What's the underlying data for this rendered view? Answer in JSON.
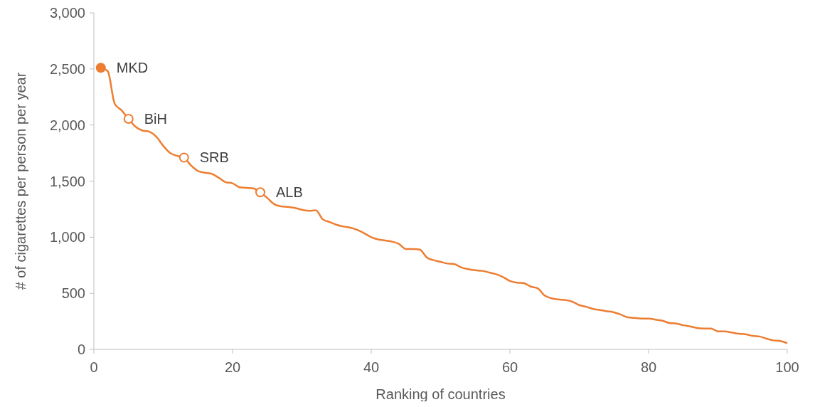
{
  "chart_data": {
    "type": "line",
    "xlabel": "Ranking of countries",
    "ylabel": "# of cigarettes per person per year",
    "x": [
      1,
      2,
      3,
      4,
      5,
      6,
      7,
      8,
      9,
      10,
      11,
      12,
      13,
      14,
      15,
      16,
      17,
      18,
      19,
      20,
      21,
      22,
      23,
      24,
      25,
      26,
      27,
      28,
      29,
      30,
      31,
      32,
      33,
      34,
      35,
      36,
      37,
      38,
      39,
      40,
      41,
      42,
      43,
      44,
      45,
      46,
      47,
      48,
      49,
      50,
      51,
      52,
      53,
      54,
      55,
      56,
      57,
      58,
      59,
      60,
      61,
      62,
      63,
      64,
      65,
      66,
      67,
      68,
      69,
      70,
      71,
      72,
      73,
      74,
      75,
      76,
      77,
      78,
      79,
      80,
      81,
      82,
      83,
      84,
      85,
      86,
      87,
      88,
      89,
      90,
      91,
      92,
      93,
      94,
      95,
      96,
      97,
      98,
      99,
      100
    ],
    "series": [
      {
        "color": "#ed7d31",
        "values": [
          2510,
          2480,
          2190,
          2130,
          2055,
          1985,
          1950,
          1940,
          1895,
          1815,
          1750,
          1725,
          1710,
          1640,
          1590,
          1575,
          1565,
          1530,
          1490,
          1480,
          1445,
          1440,
          1435,
          1400,
          1350,
          1295,
          1275,
          1270,
          1260,
          1245,
          1235,
          1240,
          1160,
          1135,
          1110,
          1095,
          1085,
          1065,
          1035,
          1000,
          980,
          970,
          960,
          940,
          895,
          895,
          890,
          820,
          795,
          780,
          765,
          760,
          730,
          715,
          705,
          700,
          685,
          670,
          645,
          610,
          595,
          590,
          560,
          545,
          480,
          455,
          445,
          440,
          425,
          395,
          380,
          360,
          350,
          340,
          330,
          310,
          285,
          280,
          275,
          275,
          265,
          255,
          235,
          230,
          215,
          205,
          190,
          185,
          185,
          160,
          160,
          150,
          140,
          135,
          120,
          115,
          95,
          80,
          75,
          55
        ]
      },
      {
        "type": "scatter",
        "marker": "circle",
        "x": [
          1,
          5,
          13,
          24
        ],
        "color": "#ed7d31",
        "colors": [
          "#ed7d31",
          "#ffffff",
          "#ffffff",
          "#ffffff"
        ],
        "values": [
          2510,
          2055,
          1710,
          1400
        ]
      }
    ],
    "annotations": [
      {
        "text": "MKD",
        "x": 1,
        "y": 2510
      },
      {
        "text": "BiH",
        "x": 5,
        "y": 2055
      },
      {
        "text": "SRB",
        "x": 13,
        "y": 1710
      },
      {
        "text": "ALB",
        "x": 24,
        "y": 1400
      }
    ],
    "xlim": [
      0,
      100
    ],
    "xticks": [
      0,
      20,
      40,
      60,
      80,
      100
    ],
    "ylim": [
      0,
      3000
    ],
    "yticks": [
      {
        "value": 0,
        "label": "0"
      },
      {
        "value": 500,
        "label": "500"
      },
      {
        "value": 1000,
        "label": "1,000"
      },
      {
        "value": 1500,
        "label": "1,500"
      },
      {
        "value": 2000,
        "label": "2,000"
      },
      {
        "value": 2500,
        "label": "2,500"
      },
      {
        "value": 3000,
        "label": "3,000"
      }
    ],
    "grid": false,
    "line_style": "solid"
  }
}
